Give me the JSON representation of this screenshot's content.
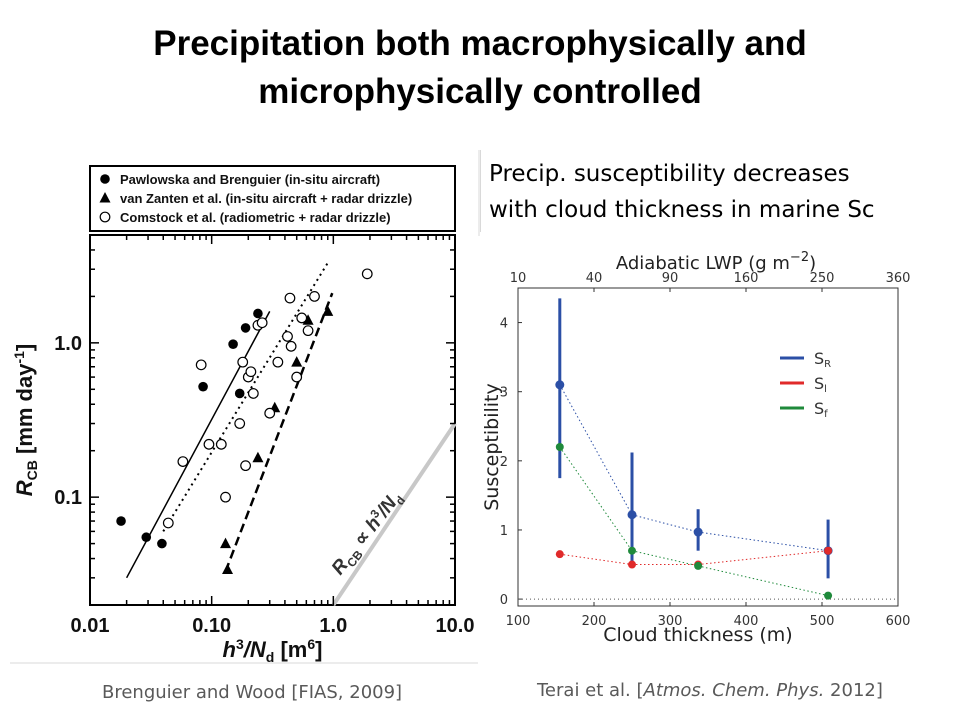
{
  "title": {
    "line1": "Precipitation both macrophysically and",
    "line2": "microphysically controlled"
  },
  "subtitle": {
    "line1": "Precip. susceptibility decreases",
    "line2": "with cloud thickness in marine Sc"
  },
  "captions": {
    "left": "Brenguier and Wood [FIAS, 2009]",
    "right_prefix": "Terai et al. [",
    "right_italic": "Atmos. Chem. Phys.",
    "right_suffix": " 2012]"
  },
  "chart_data": [
    {
      "type": "scatter",
      "xscale": "log",
      "yscale": "log",
      "xlim": [
        0.01,
        10.0
      ],
      "ylim": [
        0.02,
        5.0
      ],
      "xticks": [
        0.01,
        0.1,
        1.0,
        10.0
      ],
      "xtick_labels": [
        "0.01",
        "0.10",
        "1.0",
        "10.0"
      ],
      "yticks": [
        0.1,
        1.0
      ],
      "ytick_labels": [
        "0.1",
        "1.0"
      ],
      "xlabel": "h³/N_d [m⁶]",
      "ylabel": "R_CB [mm day⁻¹]",
      "annotation": "R_CB ∝ h³/N_d",
      "legend_position": "top",
      "series": [
        {
          "name": "Pawlowska and Brenguier (in-situ aircraft)",
          "marker": "filled-circle",
          "fit": "solid",
          "fit_points": [
            [
              0.02,
              0.03
            ],
            [
              0.3,
              1.6
            ]
          ],
          "points": [
            [
              0.018,
              0.07
            ],
            [
              0.029,
              0.055
            ],
            [
              0.039,
              0.05
            ],
            [
              0.085,
              0.52
            ],
            [
              0.15,
              0.98
            ],
            [
              0.17,
              0.47
            ],
            [
              0.19,
              1.25
            ],
            [
              0.24,
              1.55
            ]
          ]
        },
        {
          "name": "van Zanten et al. (in-situ aircraft + radar drizzle)",
          "marker": "filled-triangle",
          "fit": "dashed",
          "fit_points": [
            [
              0.13,
              0.033
            ],
            [
              0.98,
              2.1
            ]
          ],
          "points": [
            [
              0.13,
              0.05
            ],
            [
              0.135,
              0.034
            ],
            [
              0.24,
              0.18
            ],
            [
              0.33,
              0.38
            ],
            [
              0.5,
              0.75
            ],
            [
              0.62,
              1.4
            ],
            [
              0.9,
              1.6
            ]
          ]
        },
        {
          "name": "Comstock et al. (radiometric + radar drizzle)",
          "marker": "open-circle",
          "fit": "dotted",
          "fit_points": [
            [
              0.04,
              0.06
            ],
            [
              0.9,
              3.3
            ]
          ],
          "points": [
            [
              0.044,
              0.068
            ],
            [
              0.058,
              0.17
            ],
            [
              0.082,
              0.72
            ],
            [
              0.095,
              0.22
            ],
            [
              0.12,
              0.22
            ],
            [
              0.13,
              0.1
            ],
            [
              0.17,
              0.3
            ],
            [
              0.18,
              0.75
            ],
            [
              0.19,
              0.16
            ],
            [
              0.2,
              0.6
            ],
            [
              0.21,
              0.65
            ],
            [
              0.22,
              0.47
            ],
            [
              0.24,
              1.3
            ],
            [
              0.26,
              1.35
            ],
            [
              0.3,
              0.35
            ],
            [
              0.35,
              0.75
            ],
            [
              0.42,
              1.1
            ],
            [
              0.44,
              1.95
            ],
            [
              0.45,
              0.95
            ],
            [
              0.5,
              0.6
            ],
            [
              0.55,
              1.45
            ],
            [
              0.62,
              1.2
            ],
            [
              0.7,
              2.0
            ],
            [
              1.9,
              2.8
            ]
          ]
        }
      ]
    },
    {
      "type": "scatter",
      "xlim": [
        100,
        600
      ],
      "ylim": [
        -0.1,
        4.5
      ],
      "xticks": [
        100,
        200,
        300,
        400,
        500,
        600
      ],
      "yticks": [
        0,
        1,
        2,
        3,
        4
      ],
      "xlabel": "Cloud thickness (m)",
      "ylabel": "Susceptibility",
      "top_xlabel": "Adiabatic LWP (g m⁻²)",
      "top_ticks": [
        "10",
        "40",
        "90",
        "160",
        "250",
        "360"
      ],
      "legend_position": "top-right",
      "x": [
        155,
        250,
        337,
        508
      ],
      "series": [
        {
          "name": "S_R",
          "color": "#2b4fa6",
          "values": [
            3.1,
            1.22,
            0.97,
            0.7
          ],
          "error_low": [
            1.75,
            0.5,
            0.7,
            0.3
          ],
          "error_high": [
            4.35,
            2.12,
            1.3,
            1.15
          ]
        },
        {
          "name": "S_l",
          "color": "#e02a2a",
          "values": [
            0.65,
            0.5,
            0.5,
            0.7
          ]
        },
        {
          "name": "S_f",
          "color": "#1f8a3b",
          "values": [
            2.2,
            0.7,
            0.48,
            0.05
          ]
        }
      ]
    }
  ]
}
